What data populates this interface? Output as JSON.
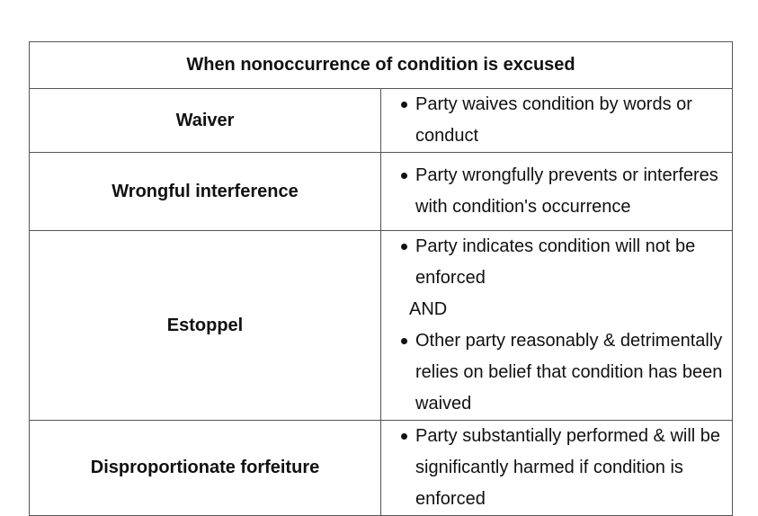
{
  "table": {
    "title": "When nonoccurrence of condition is excused",
    "rows": [
      {
        "term": "Waiver",
        "bullets": [
          "Party waives condition by words or conduct"
        ]
      },
      {
        "term": "Wrongful interference",
        "bullets": [
          "Party wrongfully prevents or interferes with condition's occurrence"
        ]
      },
      {
        "term": "Estoppel",
        "bullets": [
          "Party indicates condition will not be enforced",
          "Other party reasonably & detrimentally relies on belief that condition has been waived"
        ],
        "joiner": "AND"
      },
      {
        "term": "Disproportionate forfeiture",
        "bullets": [
          "Party substantially performed & will be significantly harmed if condition is enforced"
        ]
      }
    ]
  }
}
